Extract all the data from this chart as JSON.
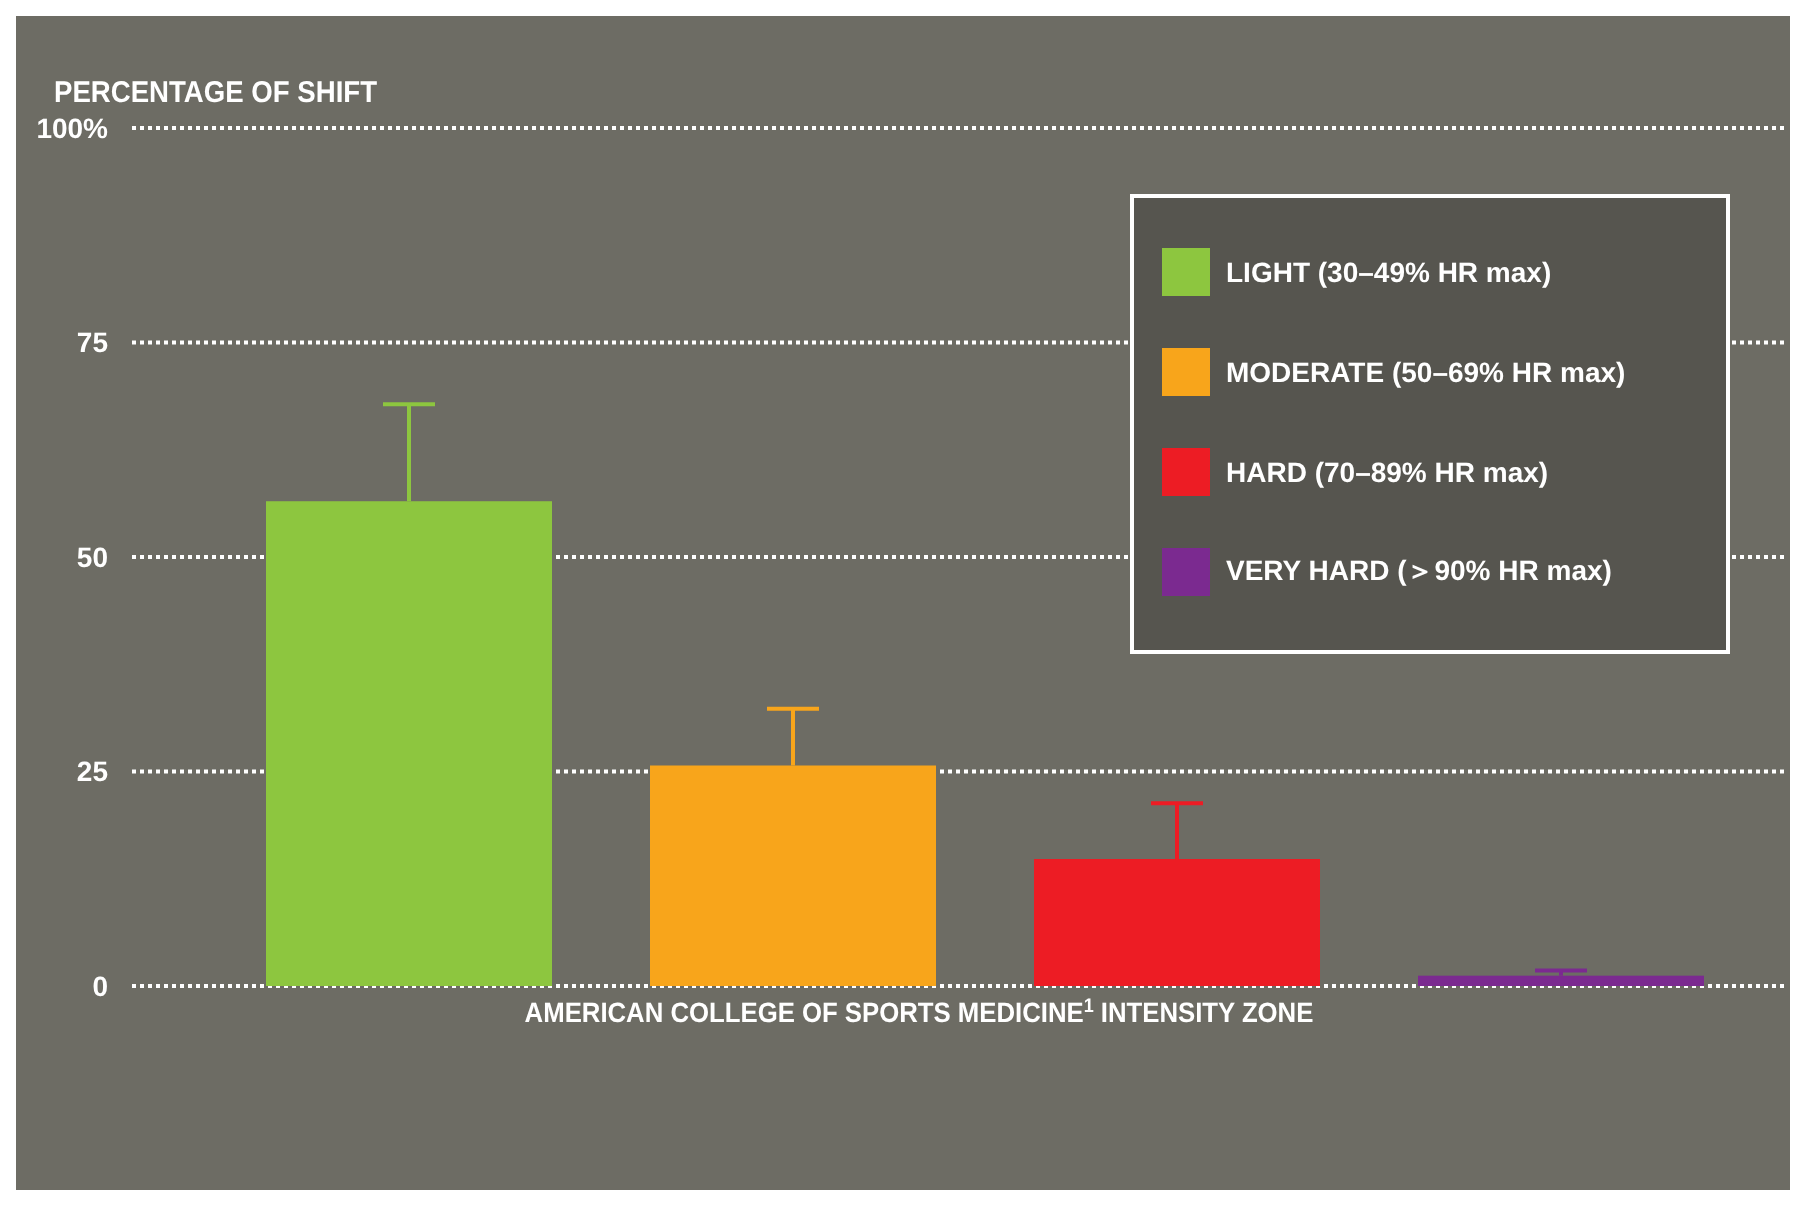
{
  "chart_data": {
    "type": "bar",
    "ylabel": "PERCENTAGE OF SHIFT",
    "xlabel": "AMERICAN COLLEGE OF SPORTS MEDICINE$^{1}$ INTENSITY ZONE",
    "categories": [
      null,
      null,
      null,
      null
    ],
    "series": [
      {
        "name": "LIGHT (30–49% HR max)",
        "color": "#8dc63f",
        "values": [
          56.5,
          null,
          null,
          null
        ],
        "errors": [
          [
            56.5,
            67.8
          ],
          null,
          null,
          null
        ]
      },
      {
        "name": "MODERATE (50–69% HR max)",
        "color": "#f8a51b",
        "values": [
          null,
          25.7,
          null,
          null
        ],
        "errors": [
          null,
          [
            25.7,
            32.3
          ],
          null,
          null
        ]
      },
      {
        "name": "HARD (70–89% HR max)",
        "color": "#ed1c24",
        "values": [
          null,
          null,
          14.8,
          null
        ],
        "errors": [
          null,
          null,
          [
            14.8,
            21.3
          ],
          null
        ]
      },
      {
        "name": "VERY HARD (＞90% HR max)",
        "color": "#7b2a90",
        "values": [
          null,
          null,
          null,
          1.2
        ],
        "errors": [
          null,
          null,
          null,
          [
            1.2,
            1.8
          ]
        ]
      }
    ],
    "ylim": [
      0,
      100
    ],
    "yticks": [
      0,
      25,
      50,
      75,
      {
        "value": 100,
        "label": "100%"
      }
    ],
    "grid": "y",
    "legend": "top right"
  }
}
